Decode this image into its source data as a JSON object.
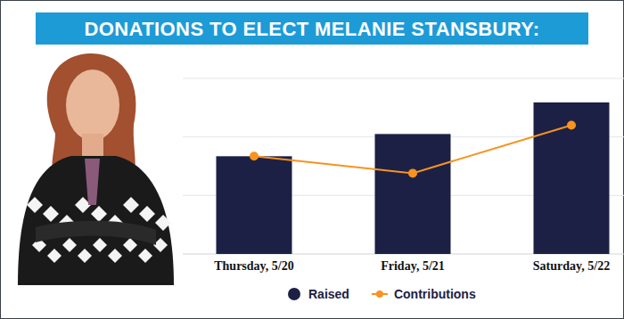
{
  "chart_data": {
    "type": "bar",
    "title": "DONATIONS TO ELECT MELANIE STANSBURY:",
    "categories": [
      "Thursday, 5/20",
      "Friday, 5/21",
      "Saturday, 5/22"
    ],
    "series": [
      {
        "name": "Raised",
        "type": "bar",
        "color": "#1c2045",
        "values": [
          1.67,
          2.05,
          2.59
        ]
      },
      {
        "name": "Contributions",
        "type": "line",
        "color": "#f7931e",
        "marker": "circle",
        "values": [
          1.67,
          1.38,
          2.2
        ]
      }
    ],
    "ylim": [
      0,
      3
    ],
    "yticks": [
      0,
      1,
      2,
      3
    ],
    "grid": true,
    "tick_labels": "x",
    "legend": "bottom"
  }
}
